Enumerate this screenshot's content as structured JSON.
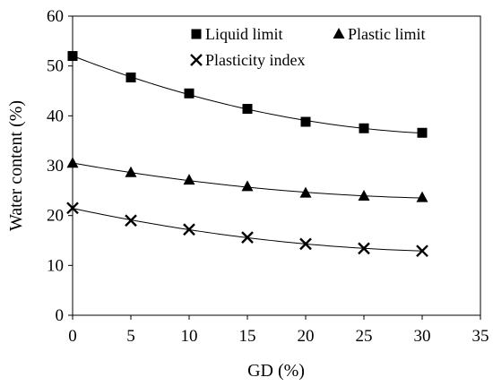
{
  "chart_data": {
    "type": "scatter",
    "x": [
      0,
      5,
      10,
      15,
      20,
      25,
      30
    ],
    "series": [
      {
        "name": "Liquid limit",
        "marker": "square",
        "values": [
          52.0,
          47.7,
          44.5,
          41.4,
          38.8,
          37.5,
          36.6
        ]
      },
      {
        "name": "Plastic limit",
        "marker": "triangle",
        "values": [
          30.5,
          28.6,
          27.1,
          25.8,
          24.5,
          23.9,
          23.6
        ]
      },
      {
        "name": "Plasticity index",
        "marker": "x",
        "values": [
          21.5,
          19.0,
          17.2,
          15.6,
          14.3,
          13.4,
          12.9
        ]
      }
    ],
    "trendline": "polynomial",
    "title": "",
    "xlabel": "GD (%)",
    "ylabel": "Water content (%)",
    "xlim": [
      0,
      35
    ],
    "ylim": [
      0,
      60
    ],
    "x_ticks": [
      "0",
      "5",
      "10",
      "15",
      "20",
      "25",
      "30",
      "35"
    ],
    "y_ticks": [
      "0",
      "10",
      "20",
      "30",
      "40",
      "50",
      "60"
    ],
    "grid": false,
    "legend_position": "top-right",
    "colors": {
      "marker": "#000000",
      "line": "#000000",
      "background": "#ffffff"
    }
  }
}
